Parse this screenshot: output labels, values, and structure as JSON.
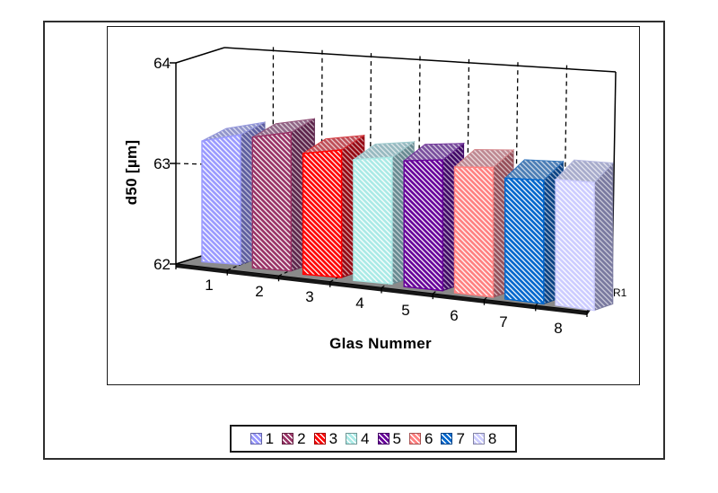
{
  "chart_data": {
    "type": "bar",
    "projection": "3d",
    "categories": [
      "1",
      "2",
      "3",
      "4",
      "5",
      "6",
      "7",
      "8"
    ],
    "series": [
      {
        "name": "R1",
        "values": [
          63.2,
          63.3,
          63.2,
          63.2,
          63.25,
          63.25,
          63.2,
          63.25
        ]
      }
    ],
    "xlabel": "Glas Nummer",
    "ylabel": "d50 [µm]",
    "ylim": [
      62,
      64
    ],
    "yticks": [
      "62",
      "63",
      "64"
    ],
    "grid": "dashed",
    "legend_position": "bottom",
    "colors": [
      "#9999FF",
      "#993366",
      "#FF0000",
      "#AAEAE6",
      "#660099",
      "#FF8080",
      "#0066CC",
      "#CCCCFF"
    ],
    "pattern": "white-diagonal-hatch",
    "floor_color": "#8A8A8A",
    "wall_color": "#FFFFFF"
  }
}
